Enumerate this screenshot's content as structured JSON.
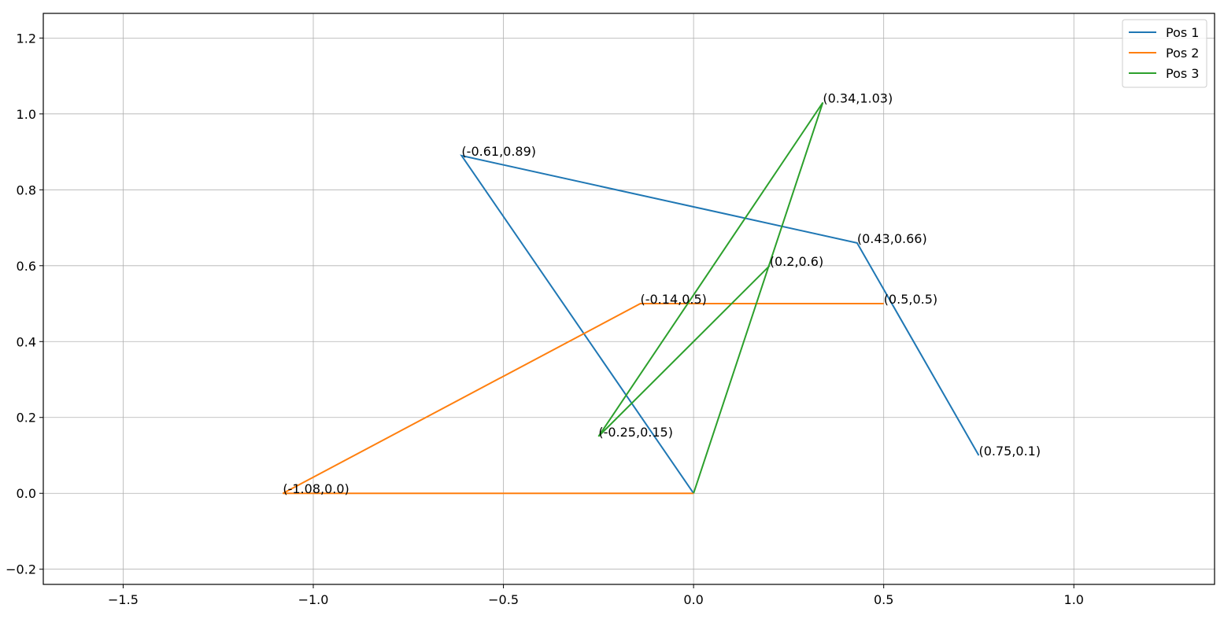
{
  "chart_data": {
    "type": "line",
    "title": "",
    "xlabel": "",
    "ylabel": "",
    "xlim": [
      -1.71,
      1.37
    ],
    "ylim": [
      -0.24,
      1.265
    ],
    "grid": true,
    "legend_position": "top-right",
    "x_ticks": [
      {
        "value": -1.5,
        "label": "−1.5"
      },
      {
        "value": -1.0,
        "label": "−1.0"
      },
      {
        "value": -0.5,
        "label": "−0.5"
      },
      {
        "value": 0.0,
        "label": "0.0"
      },
      {
        "value": 0.5,
        "label": "0.5"
      },
      {
        "value": 1.0,
        "label": "1.0"
      }
    ],
    "y_ticks": [
      {
        "value": -0.2,
        "label": "−0.2"
      },
      {
        "value": 0.0,
        "label": "0.0"
      },
      {
        "value": 0.2,
        "label": "0.2"
      },
      {
        "value": 0.4,
        "label": "0.4"
      },
      {
        "value": 0.6,
        "label": "0.6"
      },
      {
        "value": 0.8,
        "label": "0.8"
      },
      {
        "value": 1.0,
        "label": "1.0"
      },
      {
        "value": 1.2,
        "label": "1.2"
      }
    ],
    "series": [
      {
        "name": "Pos 1",
        "color": "#1f77b4",
        "x": [
          0.0,
          -0.61,
          0.43,
          0.75
        ],
        "y": [
          0.0,
          0.89,
          0.66,
          0.1
        ]
      },
      {
        "name": "Pos 2",
        "color": "#ff7f0e",
        "x": [
          0.0,
          -1.08,
          -0.14,
          0.5
        ],
        "y": [
          0.0,
          0.0,
          0.5,
          0.5
        ]
      },
      {
        "name": "Pos 3",
        "color": "#2ca02c",
        "x": [
          0.0,
          0.34,
          -0.25,
          0.2
        ],
        "y": [
          0.0,
          1.03,
          0.15,
          0.6
        ]
      }
    ],
    "annotations": [
      {
        "text": "(0.75,0.1)",
        "x": 0.75,
        "y": 0.1
      },
      {
        "text": "(0.43,0.66)",
        "x": 0.43,
        "y": 0.66
      },
      {
        "text": "(-0.61,0.89)",
        "x": -0.61,
        "y": 0.89
      },
      {
        "text": "(-1.08,0.0)",
        "x": -1.08,
        "y": 0.0
      },
      {
        "text": "(-0.14,0.5)",
        "x": -0.14,
        "y": 0.5
      },
      {
        "text": "(0.5,0.5)",
        "x": 0.5,
        "y": 0.5
      },
      {
        "text": "(0.34,1.03)",
        "x": 0.34,
        "y": 1.03
      },
      {
        "text": "(-0.25,0.15)",
        "x": -0.25,
        "y": 0.15
      },
      {
        "text": "(0.2,0.6)",
        "x": 0.2,
        "y": 0.6
      }
    ]
  }
}
